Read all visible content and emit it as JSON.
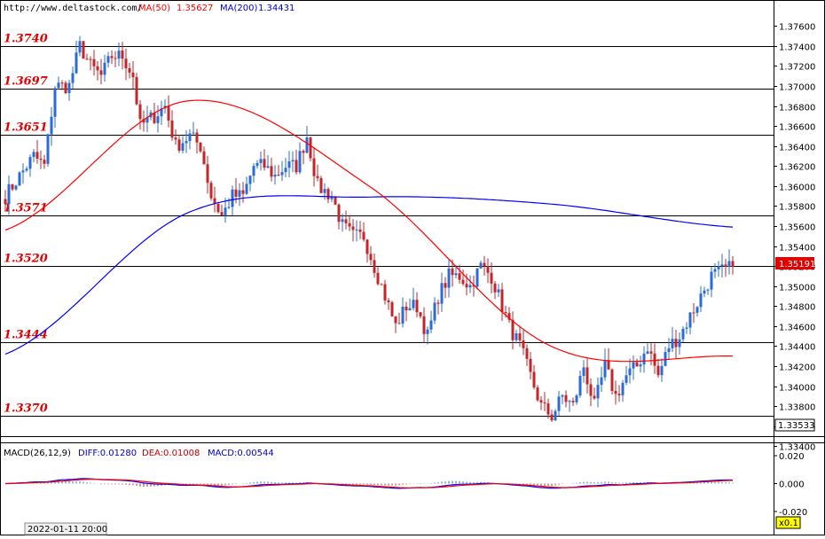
{
  "header": {
    "source": "http://www.deltastock.com/",
    "ma50_label": "MA(50)",
    "ma50_value": "1.35627",
    "ma200_label": "MA(200)",
    "ma200_value": "1.34431"
  },
  "macd_header": {
    "title": "MACD(26,12,9)",
    "diff_label": "DIFF:0.01280",
    "dea_label": "DEA:0.01008",
    "macd_label": "MACD:0.00544"
  },
  "price_tag": "1.35191",
  "crosshair_tag": "1.33533",
  "zoom_tag": "x0.1",
  "date_tag": "2022-01-11 20:00",
  "colors": {
    "bull": "#2b6cd4",
    "bear": "#c0262a",
    "ma50": "#ff0000",
    "ma200": "#0000ff",
    "level_text": "#e00000",
    "price_tag_bg": "#e00000"
  },
  "chart_data": [
    {
      "type": "candlestick",
      "title": "",
      "ylim": [
        1.335,
        1.377
      ],
      "y_ticks": [
        "1.37600",
        "1.37400",
        "1.37200",
        "1.37000",
        "1.36800",
        "1.36600",
        "1.36400",
        "1.36200",
        "1.36000",
        "1.35800",
        "1.35600",
        "1.35400",
        "1.35200",
        "1.35000",
        "1.34800",
        "1.34600",
        "1.34400",
        "1.34200",
        "1.34000",
        "1.33800",
        "1.33600",
        "1.33400"
      ],
      "levels": [
        {
          "label": "1.3740",
          "value": 1.374
        },
        {
          "label": "1.3697",
          "value": 1.3697
        },
        {
          "label": "1.3651",
          "value": 1.3651
        },
        {
          "label": "1.3571",
          "value": 1.3571
        },
        {
          "label": "1.3520",
          "value": 1.352
        },
        {
          "label": "1.3444",
          "value": 1.3444
        },
        {
          "label": "1.3370",
          "value": 1.337
        }
      ],
      "ma50_endpoints": [
        1.3556,
        1.3685,
        1.36,
        1.344,
        1.343
      ],
      "ma200_endpoints": [
        1.3432,
        1.3573,
        1.3589,
        1.3582,
        1.3559
      ],
      "path_keypoints": [
        [
          0,
          1.359
        ],
        [
          4,
          1.361
        ],
        [
          8,
          1.363
        ],
        [
          11,
          1.362
        ],
        [
          14,
          1.37
        ],
        [
          18,
          1.37
        ],
        [
          21,
          1.374
        ],
        [
          24,
          1.372
        ],
        [
          27,
          1.371
        ],
        [
          30,
          1.373
        ],
        [
          33,
          1.373
        ],
        [
          36,
          1.371
        ],
        [
          38,
          1.366
        ],
        [
          42,
          1.367
        ],
        [
          45,
          1.368
        ],
        [
          48,
          1.364
        ],
        [
          52,
          1.365
        ],
        [
          55,
          1.364
        ],
        [
          58,
          1.359
        ],
        [
          61,
          1.357
        ],
        [
          64,
          1.359
        ],
        [
          67,
          1.359
        ],
        [
          70,
          1.362
        ],
        [
          73,
          1.362
        ],
        [
          76,
          1.361
        ],
        [
          79,
          1.362
        ],
        [
          82,
          1.362
        ],
        [
          85,
          1.365
        ],
        [
          88,
          1.36
        ],
        [
          92,
          1.359
        ],
        [
          95,
          1.356
        ],
        [
          98,
          1.355
        ],
        [
          101,
          1.355
        ],
        [
          104,
          1.352
        ],
        [
          107,
          1.349
        ],
        [
          110,
          1.346
        ],
        [
          113,
          1.348
        ],
        [
          116,
          1.348
        ],
        [
          119,
          1.345
        ],
        [
          122,
          1.349
        ],
        [
          125,
          1.351
        ],
        [
          128,
          1.351
        ],
        [
          131,
          1.35
        ],
        [
          134,
          1.352
        ],
        [
          137,
          1.351
        ],
        [
          140,
          1.348
        ],
        [
          142,
          1.346
        ],
        [
          145,
          1.344
        ],
        [
          148,
          1.341
        ],
        [
          151,
          1.338
        ],
        [
          154,
          1.337
        ],
        [
          157,
          1.339
        ],
        [
          160,
          1.338
        ],
        [
          163,
          1.342
        ],
        [
          166,
          1.338
        ],
        [
          169,
          1.342
        ],
        [
          172,
          1.339
        ],
        [
          175,
          1.341
        ],
        [
          178,
          1.342
        ],
        [
          181,
          1.344
        ],
        [
          184,
          1.341
        ],
        [
          187,
          1.344
        ],
        [
          190,
          1.345
        ],
        [
          193,
          1.347
        ],
        [
          196,
          1.349
        ],
        [
          199,
          1.351
        ],
        [
          202,
          1.3515
        ],
        [
          205,
          1.3519
        ]
      ]
    },
    {
      "type": "line",
      "title": "MACD(26,12,9)",
      "ylim": [
        -0.027,
        0.027
      ],
      "y_ticks": [
        "0.020",
        "0.000",
        "-0.020"
      ],
      "series": [
        {
          "name": "DIFF"
        },
        {
          "name": "DEA"
        },
        {
          "name": "MACD"
        }
      ]
    }
  ]
}
